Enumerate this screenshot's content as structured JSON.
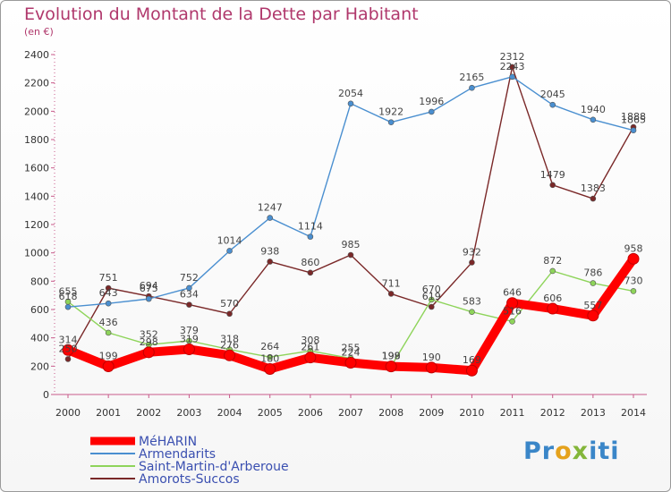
{
  "header": {
    "title": "Evolution du Montant de la Dette par Habitant",
    "unit": "(en €)"
  },
  "logo": {
    "text": "Proxiti",
    "parts": [
      "Pr",
      "o",
      "x",
      "iti"
    ]
  },
  "chart_data": {
    "type": "line",
    "title": "Evolution du Montant de la Dette par Habitant",
    "subtitle": "(en €)",
    "xlabel": "",
    "ylabel": "",
    "ylim": [
      0,
      2400
    ],
    "yticks": [
      0,
      200,
      400,
      600,
      800,
      1000,
      1200,
      1400,
      1600,
      1800,
      2000,
      2200,
      2400
    ],
    "grid": false,
    "legend_position": "bottom-left",
    "categories": [
      "2000",
      "2001",
      "2002",
      "2003",
      "2004",
      "2005",
      "2006",
      "2007",
      "2008",
      "2009",
      "2010",
      "2011",
      "2012",
      "2013",
      "2014"
    ],
    "series": [
      {
        "name": "MéHARIN",
        "color": "#ff0000",
        "values": [
          314,
          199,
          298,
          319,
          276,
          180,
          261,
          224,
          198,
          190,
          169,
          646,
          606,
          557,
          958
        ]
      },
      {
        "name": "Armendarits",
        "color": "#4a8fd0",
        "values": [
          618,
          643,
          675,
          752,
          1014,
          1247,
          1114,
          2054,
          1922,
          1996,
          2165,
          2243,
          2045,
          1940,
          1865
        ]
      },
      {
        "name": "Saint-Martin-d'Arberoue",
        "color": "#8ed45a",
        "values": [
          655,
          436,
          352,
          379,
          318,
          264,
          308,
          255,
          199,
          670,
          583,
          516,
          872,
          786,
          730
        ]
      },
      {
        "name": "Amorots-Succos",
        "color": "#7a2828",
        "values": [
          250,
          751,
          694,
          634,
          570,
          938,
          860,
          985,
          711,
          619,
          932,
          2312,
          1479,
          1383,
          1888
        ]
      }
    ]
  }
}
